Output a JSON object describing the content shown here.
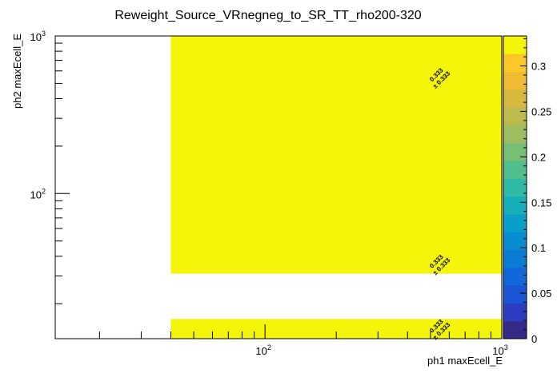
{
  "chart_data": {
    "type": "heatmap",
    "title": "Reweight_Source_VRnegneg_to_SR_TT_rho200-320",
    "xlabel": "ph1 maxEcell_E",
    "ylabel": "ph2 maxEcell_E",
    "xscale": "log",
    "yscale": "log",
    "xlim": [
      13,
      1000
    ],
    "ylim": [
      12,
      1000
    ],
    "x_tick_labels": [
      {
        "v": 100,
        "text": "10",
        "exp": "2"
      },
      {
        "v": 1000,
        "text": "10",
        "exp": "3"
      }
    ],
    "y_tick_labels": [
      {
        "v": 100,
        "text": "10",
        "exp": "2"
      },
      {
        "v": 1000,
        "text": "10",
        "exp": "3"
      }
    ],
    "cells": [
      {
        "x": [
          40,
          1000
        ],
        "y": [
          31,
          1000
        ],
        "value": 0.333,
        "error": 0.333,
        "label": "0.333",
        "err_label": "± 0.333",
        "color": "#f5f50a"
      },
      {
        "x": [
          40,
          1000
        ],
        "y": [
          12,
          16
        ],
        "value": 0.333,
        "error": 0.333,
        "label": "0.333",
        "err_label": "± 0.333",
        "color": "#f5f50a"
      }
    ],
    "text_annotations": [
      {
        "x": 540,
        "y": 550,
        "label": "0.333",
        "err_label": "± 0.333"
      },
      {
        "x": 540,
        "y": 36,
        "label": "0.333",
        "err_label": "± 0.333"
      },
      {
        "x": 540,
        "y": 14,
        "label": "0.333",
        "err_label": "± 0.333"
      }
    ],
    "colorbar": {
      "range": [
        0,
        0.333
      ],
      "ticks": [
        {
          "v": 0,
          "text": "0"
        },
        {
          "v": 0.05,
          "text": "0.05"
        },
        {
          "v": 0.1,
          "text": "0.1"
        },
        {
          "v": 0.15,
          "text": "0.15"
        },
        {
          "v": 0.2,
          "text": "0.2"
        },
        {
          "v": 0.25,
          "text": "0.25"
        },
        {
          "v": 0.3,
          "text": "0.3"
        }
      ],
      "colors": [
        "#352a87",
        "#2c3ec0",
        "#1a55d6",
        "#1268db",
        "#0c7bd6",
        "#0a8dd0",
        "#08a0c8",
        "#14afb8",
        "#2fbaa6",
        "#52be8e",
        "#78bf76",
        "#9dbe60",
        "#bdbb4e",
        "#d9b840",
        "#f0bb33",
        "#fbc828",
        "#f5f50a"
      ],
      "grid": false,
      "placement": "right"
    },
    "grid": false,
    "legend": "none"
  }
}
